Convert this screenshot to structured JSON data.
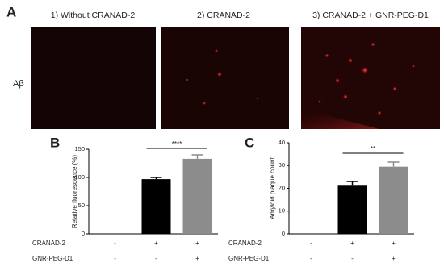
{
  "panel_labels": [
    "A",
    "B",
    "C"
  ],
  "images": {
    "row_label": "Aβ",
    "titles": [
      "1) Without CRANAD-2",
      "2) CRANAD-2",
      "3) CRANAD-2 + GNR-PEG-D1"
    ]
  },
  "chart_data": [
    {
      "type": "bar",
      "ylabel": "Relative fluorescence (%)",
      "categories": [
        null,
        null,
        null
      ],
      "values": [
        0,
        97,
        133
      ],
      "errors": [
        0,
        3,
        7
      ],
      "colors": [
        "#000000",
        "#000000",
        "#8c8c8c"
      ],
      "ylim": [
        0,
        150
      ],
      "yticks": [
        0,
        50,
        100,
        150
      ],
      "annotation": "****",
      "condition_rows": [
        {
          "name": "CRANAD-2",
          "marks": [
            "-",
            "+",
            "+"
          ]
        },
        {
          "name": "GNR-PEG-D1",
          "marks": [
            "-",
            "-",
            "+"
          ]
        }
      ]
    },
    {
      "type": "bar",
      "ylabel": "Amyloid plaque count",
      "categories": [
        null,
        null,
        null
      ],
      "values": [
        0,
        21.5,
        29.5
      ],
      "errors": [
        0,
        1.5,
        2
      ],
      "colors": [
        "#000000",
        "#000000",
        "#8c8c8c"
      ],
      "ylim": [
        0,
        40
      ],
      "yticks": [
        0,
        10,
        20,
        30,
        40
      ],
      "annotation": "**",
      "condition_rows": [
        {
          "name": "CRANAD-2",
          "marks": [
            "-",
            "+",
            "+"
          ]
        },
        {
          "name": "GNR-PEG-D1",
          "marks": [
            "-",
            "-",
            "+"
          ]
        }
      ]
    }
  ]
}
